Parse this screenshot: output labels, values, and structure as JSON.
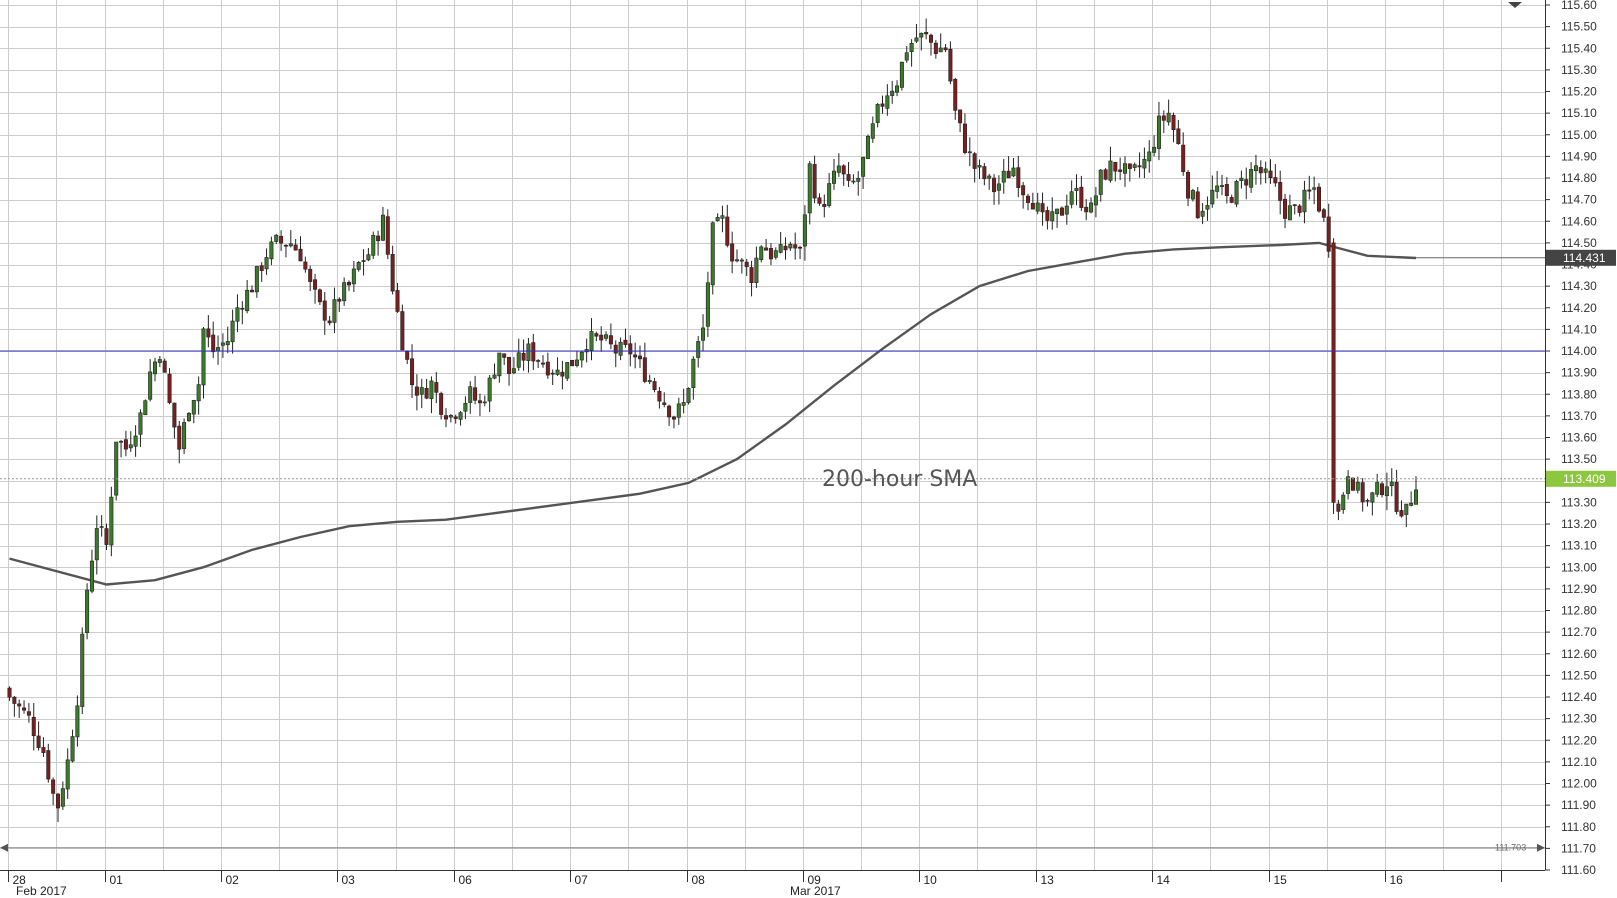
{
  "chart_data": {
    "type": "candlestick",
    "title": "",
    "xlabel": "",
    "ylabel": "",
    "ylim": [
      111.6,
      115.6
    ],
    "y_tick_labels": [
      "115.60",
      "115.50",
      "115.40",
      "115.30",
      "115.20",
      "115.10",
      "115.00",
      "114.90",
      "114.80",
      "114.70",
      "114.60",
      "114.50",
      "114.40",
      "114.30",
      "114.20",
      "114.10",
      "114.00",
      "113.90",
      "113.80",
      "113.70",
      "113.60",
      "113.50",
      "113.40",
      "113.30",
      "113.20",
      "113.10",
      "113.00",
      "112.90",
      "112.80",
      "112.70",
      "112.60",
      "112.50",
      "112.40",
      "112.30",
      "112.20",
      "112.10",
      "112.00",
      "111.90",
      "111.80",
      "111.70",
      "111.60"
    ],
    "x_tick_labels": [
      "28",
      "01",
      "02",
      "03",
      "06",
      "07",
      "08",
      "09",
      "10",
      "13",
      "14",
      "15",
      "16"
    ],
    "month_labels": [
      "Feb 2017",
      "Mar 2017"
    ],
    "day_positions_index": [
      0,
      20,
      44,
      68,
      92,
      116,
      140,
      164,
      188,
      212,
      236,
      260,
      284
    ],
    "annotation": "200-hour SMA",
    "horizontal_line": {
      "value": 114.0,
      "color": "#3333cc"
    },
    "current_price": {
      "label": "113.409",
      "value": 113.409,
      "color": "#8dc63f"
    },
    "sma_current": {
      "label": "114.431",
      "value": 114.431,
      "color": "#444444"
    },
    "low_marker": {
      "label": "111.703",
      "value": 111.703
    },
    "colors": {
      "up": "#3a7a2a",
      "down": "#7a1f1f",
      "wick": "#222222",
      "sma": "#555555",
      "grid": "#cccccc"
    },
    "close_anchors": [
      [
        0,
        112.4
      ],
      [
        4,
        112.3
      ],
      [
        7,
        112.15
      ],
      [
        9,
        111.95
      ],
      [
        10,
        111.9
      ],
      [
        12,
        112.1
      ],
      [
        14,
        112.4
      ],
      [
        16,
        112.9
      ],
      [
        18,
        113.2
      ],
      [
        20,
        113.1
      ],
      [
        22,
        113.6
      ],
      [
        24,
        113.55
      ],
      [
        27,
        113.7
      ],
      [
        29,
        113.9
      ],
      [
        31,
        114.0
      ],
      [
        33,
        113.75
      ],
      [
        35,
        113.55
      ],
      [
        37,
        113.75
      ],
      [
        39,
        113.85
      ],
      [
        40,
        114.1
      ],
      [
        42,
        114.0
      ],
      [
        45,
        114.05
      ],
      [
        47,
        114.2
      ],
      [
        50,
        114.3
      ],
      [
        53,
        114.45
      ],
      [
        55,
        114.5
      ],
      [
        58,
        114.5
      ],
      [
        60,
        114.45
      ],
      [
        62,
        114.3
      ],
      [
        64,
        114.2
      ],
      [
        66,
        114.15
      ],
      [
        68,
        114.25
      ],
      [
        70,
        114.3
      ],
      [
        72,
        114.4
      ],
      [
        74,
        114.45
      ],
      [
        76,
        114.55
      ],
      [
        77,
        114.6
      ],
      [
        79,
        114.3
      ],
      [
        81,
        114.05
      ],
      [
        83,
        113.85
      ],
      [
        85,
        113.8
      ],
      [
        87,
        113.85
      ],
      [
        89,
        113.75
      ],
      [
        91,
        113.7
      ],
      [
        93,
        113.75
      ],
      [
        95,
        113.8
      ],
      [
        97,
        113.75
      ],
      [
        99,
        113.85
      ],
      [
        101,
        114.0
      ],
      [
        103,
        113.9
      ],
      [
        105,
        113.95
      ],
      [
        107,
        114.0
      ],
      [
        110,
        113.95
      ],
      [
        113,
        113.9
      ],
      [
        116,
        113.95
      ],
      [
        119,
        114.05
      ],
      [
        122,
        114.05
      ],
      [
        125,
        114.0
      ],
      [
        128,
        114.0
      ],
      [
        131,
        113.9
      ],
      [
        134,
        113.8
      ],
      [
        137,
        113.7
      ],
      [
        139,
        113.75
      ],
      [
        141,
        113.95
      ],
      [
        143,
        114.1
      ],
      [
        145,
        114.55
      ],
      [
        147,
        114.6
      ],
      [
        149,
        114.45
      ],
      [
        151,
        114.4
      ],
      [
        153,
        114.35
      ],
      [
        155,
        114.5
      ],
      [
        157,
        114.45
      ],
      [
        159,
        114.45
      ],
      [
        161,
        114.5
      ],
      [
        163,
        114.45
      ],
      [
        165,
        114.85
      ],
      [
        167,
        114.65
      ],
      [
        169,
        114.75
      ],
      [
        171,
        114.85
      ],
      [
        173,
        114.75
      ],
      [
        175,
        114.8
      ],
      [
        177,
        114.95
      ],
      [
        179,
        115.1
      ],
      [
        181,
        115.2
      ],
      [
        183,
        115.25
      ],
      [
        185,
        115.4
      ],
      [
        187,
        115.45
      ],
      [
        189,
        115.45
      ],
      [
        191,
        115.4
      ],
      [
        193,
        115.4
      ],
      [
        195,
        115.1
      ],
      [
        197,
        114.95
      ],
      [
        199,
        114.85
      ],
      [
        201,
        114.8
      ],
      [
        203,
        114.75
      ],
      [
        205,
        114.8
      ],
      [
        207,
        114.85
      ],
      [
        209,
        114.75
      ],
      [
        211,
        114.7
      ],
      [
        213,
        114.6
      ],
      [
        215,
        114.6
      ],
      [
        217,
        114.65
      ],
      [
        219,
        114.75
      ],
      [
        221,
        114.7
      ],
      [
        223,
        114.65
      ],
      [
        225,
        114.8
      ],
      [
        227,
        114.85
      ],
      [
        229,
        114.85
      ],
      [
        231,
        114.8
      ],
      [
        233,
        114.85
      ],
      [
        235,
        114.9
      ],
      [
        237,
        115.05
      ],
      [
        239,
        115.1
      ],
      [
        241,
        114.95
      ],
      [
        243,
        114.75
      ],
      [
        245,
        114.65
      ],
      [
        247,
        114.7
      ],
      [
        249,
        114.75
      ],
      [
        251,
        114.7
      ],
      [
        253,
        114.75
      ],
      [
        255,
        114.8
      ],
      [
        257,
        114.85
      ],
      [
        259,
        114.8
      ],
      [
        261,
        114.75
      ],
      [
        263,
        114.65
      ],
      [
        265,
        114.65
      ],
      [
        267,
        114.7
      ],
      [
        269,
        114.75
      ],
      [
        271,
        114.6
      ],
      [
        272,
        114.5
      ],
      [
        273,
        113.4
      ],
      [
        274,
        113.25
      ],
      [
        276,
        113.45
      ],
      [
        278,
        113.35
      ],
      [
        280,
        113.3
      ],
      [
        282,
        113.35
      ],
      [
        284,
        113.4
      ],
      [
        286,
        113.3
      ],
      [
        288,
        113.25
      ],
      [
        290,
        113.4
      ]
    ],
    "sma_anchors": [
      [
        0,
        113.04
      ],
      [
        20,
        112.92
      ],
      [
        30,
        112.94
      ],
      [
        40,
        113.0
      ],
      [
        50,
        113.08
      ],
      [
        60,
        113.14
      ],
      [
        70,
        113.19
      ],
      [
        80,
        113.21
      ],
      [
        90,
        113.22
      ],
      [
        100,
        113.25
      ],
      [
        110,
        113.28
      ],
      [
        120,
        113.31
      ],
      [
        130,
        113.34
      ],
      [
        140,
        113.39
      ],
      [
        150,
        113.5
      ],
      [
        160,
        113.66
      ],
      [
        170,
        113.84
      ],
      [
        180,
        114.01
      ],
      [
        190,
        114.17
      ],
      [
        200,
        114.3
      ],
      [
        210,
        114.37
      ],
      [
        220,
        114.41
      ],
      [
        230,
        114.45
      ],
      [
        240,
        114.47
      ],
      [
        250,
        114.48
      ],
      [
        262,
        114.49
      ],
      [
        270,
        114.5
      ],
      [
        275,
        114.47
      ],
      [
        280,
        114.44
      ],
      [
        290,
        114.43
      ]
    ]
  }
}
